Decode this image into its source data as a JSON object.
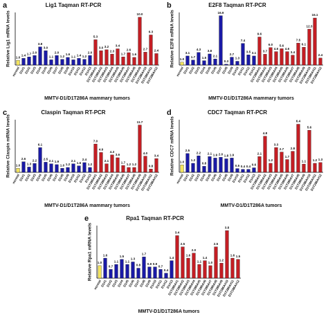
{
  "chart_data": [
    {
      "type": "bar",
      "panel": "a",
      "title": "Lig1 Taqman RT-PCR",
      "ylabel": "Relative Lig1 mRNA levels",
      "xlabel": "MMTV-D1/D1T286A mammary tumors",
      "ylim": [
        0,
        11
      ],
      "categories": [
        "normal",
        "D1#1",
        "D1#2",
        "D1#3",
        "D1#4",
        "D1#5",
        "D1#6",
        "D1#7",
        "D1#8",
        "D1#9",
        "D1#10",
        "D1#11",
        "D1#12",
        "D1#13",
        "D1T286A#1",
        "D1T286A#2",
        "D1T286A#3",
        "D1T286A#4",
        "D1T286A#5",
        "D1T286A#6",
        "D1T286A#7",
        "D1T286A#8",
        "D1T286A#9",
        "D1T286A#10",
        "D1T286A#11",
        "D1T286A#12"
      ],
      "values": [
        1.0,
        1.4,
        1.7,
        2.0,
        3.8,
        3.0,
        1.1,
        2.0,
        1.2,
        1.6,
        1.1,
        1.4,
        1.2,
        2.0,
        5.3,
        3.0,
        3.2,
        2.3,
        3.4,
        1.7,
        2.6,
        1.6,
        10.0,
        2.7,
        6.3,
        2.4
      ],
      "value_labels": [
        "1.0",
        "1.4",
        "1.7",
        "2.0",
        "3.8",
        "3.0",
        "1.1",
        "2.0",
        "1.2",
        "1.6",
        "1.1",
        "1.4",
        "1.2",
        "2.0",
        "5.3",
        "3.0",
        "3.2",
        "2.3",
        "3.4",
        "1.7",
        "2.6",
        "1.6",
        "10.0",
        "2.7",
        "6.3",
        "2.4"
      ],
      "bar_colors": [
        "#f2e35c",
        "#1a1aa6",
        "#1a1aa6",
        "#1a1aa6",
        "#1a1aa6",
        "#1a1aa6",
        "#1a1aa6",
        "#1a1aa6",
        "#1a1aa6",
        "#1a1aa6",
        "#1a1aa6",
        "#1a1aa6",
        "#1a1aa6",
        "#1a1aa6",
        "#c41e24",
        "#c41e24",
        "#c41e24",
        "#c41e24",
        "#c41e24",
        "#c41e24",
        "#c41e24",
        "#c41e24",
        "#c41e24",
        "#c41e24",
        "#c41e24",
        "#c41e24"
      ]
    },
    {
      "type": "bar",
      "panel": "b",
      "title": "E2F8 Taqman RT-PCR",
      "ylabel": "Relative E2F8 mRNA levels",
      "xlabel": "MMTV-D1/D1T286A mammary tumors",
      "ylim": [
        0,
        18
      ],
      "categories": [
        "normal",
        "D1#1",
        "D1#2",
        "D1#3",
        "D1#4",
        "D1#5",
        "D1#6",
        "D1#7",
        "D1#8",
        "D1#9",
        "D1#10",
        "D1#11",
        "D1#12",
        "D1#13",
        "D1T286A#1",
        "D1T286A#2",
        "D1T286A#3",
        "D1T286A#4",
        "D1T286A#5",
        "D1T286A#6",
        "D1T286A#7",
        "D1T286A#8",
        "D1T286A#9",
        "D1T286A#10",
        "D1T286A#11",
        "D1T286A#12"
      ],
      "values": [
        1.0,
        3.1,
        1.7,
        4.3,
        1.5,
        3.8,
        2.1,
        16.9,
        0.3,
        2.7,
        1.3,
        7.4,
        3.5,
        3.1,
        9.6,
        3.7,
        6.0,
        4.6,
        5.6,
        4.6,
        3.4,
        7.5,
        6.1,
        12.3,
        16.1,
        2.4
      ],
      "value_labels": [
        "1.0",
        "3.1",
        "1.7",
        "4.3",
        "1.5",
        "3.8",
        "2.1",
        "16.9",
        "0.3",
        "2.7",
        "1.3",
        "7.4",
        "3.5",
        "3.1",
        "9.6",
        "3.7",
        "6.0",
        "4.6",
        "5.6",
        "4.6",
        "3.4",
        "7.5",
        "6.1",
        "12.3",
        "16.1",
        "2.4"
      ],
      "bar_colors": [
        "#f2e35c",
        "#1a1aa6",
        "#1a1aa6",
        "#1a1aa6",
        "#1a1aa6",
        "#1a1aa6",
        "#1a1aa6",
        "#1a1aa6",
        "#1a1aa6",
        "#1a1aa6",
        "#1a1aa6",
        "#1a1aa6",
        "#1a1aa6",
        "#1a1aa6",
        "#c41e24",
        "#c41e24",
        "#c41e24",
        "#c41e24",
        "#c41e24",
        "#c41e24",
        "#c41e24",
        "#c41e24",
        "#c41e24",
        "#c41e24",
        "#c41e24",
        "#c41e24"
      ]
    },
    {
      "type": "bar",
      "panel": "c",
      "title": "Claspin Taqman RT-PCR",
      "ylabel": "Relative Claspin mRNA levels",
      "xlabel": "MMTV-D1/D1T286A mammary tumors",
      "ylim": [
        0,
        13
      ],
      "categories": [
        "normal",
        "D1#1",
        "D1#2",
        "D1#3",
        "D1#4",
        "D1#5",
        "D1#6",
        "D1#7",
        "D1#8",
        "D1#9",
        "D1#10",
        "D1#11",
        "D1#12",
        "D1#13",
        "D1T286A#1",
        "D1T286A#2",
        "D1T286A#3",
        "D1T286A#4",
        "D1T286A#5",
        "D1T286A#6",
        "D1T286A#7",
        "D1T286A#8",
        "D1T286A#9",
        "D1T286A#10",
        "D1T286A#11",
        "D1T286A#12"
      ],
      "values": [
        1.0,
        2.6,
        1.3,
        2.2,
        6.1,
        2.5,
        2.1,
        1.9,
        1.0,
        1.2,
        2.1,
        1.6,
        2.4,
        1.2,
        7.0,
        4.9,
        2.1,
        4.3,
        3.6,
        1.7,
        1.2,
        1.2,
        11.7,
        4.0,
        0.8,
        3.4
      ],
      "value_labels": [
        "1.0",
        "2.6",
        "1.3",
        "2.2",
        "6.1",
        "2.5",
        "2.1",
        "1.9",
        "1.0",
        "1.2",
        "2.1",
        "1.6",
        "2.4",
        "1.2",
        "7.0",
        "4.9",
        "2.1",
        "4.3",
        "3.6",
        "1.7",
        "1.2",
        "1.2",
        "11.7",
        "4.0",
        "0.8",
        "3.4"
      ],
      "bar_colors": [
        "#f2e35c",
        "#1a1aa6",
        "#1a1aa6",
        "#1a1aa6",
        "#1a1aa6",
        "#1a1aa6",
        "#1a1aa6",
        "#1a1aa6",
        "#1a1aa6",
        "#1a1aa6",
        "#1a1aa6",
        "#1a1aa6",
        "#1a1aa6",
        "#1a1aa6",
        "#c41e24",
        "#c41e24",
        "#c41e24",
        "#c41e24",
        "#c41e24",
        "#c41e24",
        "#c41e24",
        "#c41e24",
        "#c41e24",
        "#c41e24",
        "#c41e24",
        "#c41e24"
      ]
    },
    {
      "type": "bar",
      "panel": "d",
      "title": "CDC7 Taqman RT-PCR",
      "ylabel": "Relative CDC7 mRNA levels",
      "xlabel": "MMTV-D1/D1T286A tumors",
      "ylim": [
        0,
        7
      ],
      "categories": [
        "normal",
        "D1#1",
        "D1#2",
        "D1#3",
        "D1#4",
        "D1#5",
        "D1#6",
        "D1#7",
        "D1#8",
        "D1#9",
        "D1#10",
        "D1#11",
        "D1#12",
        "D1#13",
        "D1T286A#1",
        "D1T286A#2",
        "D1T286A#3",
        "D1T286A#4",
        "D1T286A#5",
        "D1T286A#6",
        "D1T286A#7",
        "D1T286A#8",
        "D1T286A#9",
        "D1T286A#10",
        "D1T286A#11",
        "D1T286A#12"
      ],
      "values": [
        1.0,
        2.5,
        1.2,
        2.2,
        0.8,
        2.1,
        1.9,
        2.0,
        1.8,
        1.9,
        0.5,
        0.4,
        0.4,
        0.6,
        2.1,
        4.8,
        1.2,
        3.3,
        2.7,
        1.7,
        2.8,
        6.4,
        1.1,
        5.6,
        1.2,
        1.3
      ],
      "value_labels": [
        "1.0",
        "2.5",
        "1.2",
        "2.2",
        "0.8",
        "2.1",
        "1.9",
        "2.0",
        "1.8",
        "1.9",
        "0.5",
        "0.4",
        "0.4",
        "0.6",
        "2.1",
        "4.8",
        "1.2",
        "3.3",
        "2.7",
        "1.7",
        "2.8",
        "6.4",
        "1.1",
        "5.6",
        "1.2",
        "1.3"
      ],
      "bar_colors": [
        "#f2e35c",
        "#1a1aa6",
        "#1a1aa6",
        "#1a1aa6",
        "#1a1aa6",
        "#1a1aa6",
        "#1a1aa6",
        "#1a1aa6",
        "#1a1aa6",
        "#1a1aa6",
        "#1a1aa6",
        "#1a1aa6",
        "#1a1aa6",
        "#1a1aa6",
        "#c41e24",
        "#c41e24",
        "#c41e24",
        "#c41e24",
        "#c41e24",
        "#c41e24",
        "#c41e24",
        "#c41e24",
        "#c41e24",
        "#c41e24",
        "#c41e24",
        "#c41e24"
      ]
    },
    {
      "type": "bar",
      "panel": "e",
      "title": "Rpa1 Taqman RT-PCR",
      "ylabel": "Relative Rpa1 mRNA levels",
      "xlabel": "MMTV-D1/D1T286A tumors",
      "ylim": [
        0,
        4.2
      ],
      "categories": [
        "normal",
        "D1#1",
        "D1#2",
        "D1#3",
        "D1#4",
        "D1#5",
        "D1#6",
        "D1#7",
        "D1#8",
        "D1#9",
        "D1#10",
        "D1#11",
        "D1#12",
        "D1#13",
        "D1T286A#1",
        "D1T286A#2",
        "D1T286A#3",
        "D1T286A#4",
        "D1T286A#5",
        "D1T286A#6",
        "D1T286A#7",
        "D1T286A#8",
        "D1T286A#9",
        "D1T286A#10",
        "D1T286A#11",
        "D1T286A#12"
      ],
      "values": [
        1.0,
        1.6,
        0.7,
        1.1,
        1.5,
        1.1,
        1.3,
        0.8,
        1.7,
        0.9,
        0.9,
        0.7,
        0.4,
        1.4,
        3.4,
        2.5,
        1.6,
        2.0,
        1.1,
        1.4,
        1.0,
        2.5,
        1.2,
        3.8,
        1.6,
        1.5
      ],
      "value_labels": [
        "1.0",
        "1.6",
        "0.7",
        "1.1",
        "1.5",
        "1.1",
        "1.3",
        "0.8",
        "1.7",
        "0.9",
        "0.9",
        "0.7",
        "0.4",
        "1.4",
        "3.4",
        "2.5",
        "1.6",
        "2.0",
        "1.1",
        "1.4",
        "1.0",
        "2.5",
        "1.2",
        "3.8",
        "1.6",
        "1.5"
      ],
      "bar_colors": [
        "#f2e35c",
        "#1a1aa6",
        "#1a1aa6",
        "#1a1aa6",
        "#1a1aa6",
        "#1a1aa6",
        "#1a1aa6",
        "#1a1aa6",
        "#1a1aa6",
        "#1a1aa6",
        "#1a1aa6",
        "#1a1aa6",
        "#1a1aa6",
        "#1a1aa6",
        "#c41e24",
        "#c41e24",
        "#c41e24",
        "#c41e24",
        "#c41e24",
        "#c41e24",
        "#c41e24",
        "#c41e24",
        "#c41e24",
        "#c41e24",
        "#c41e24",
        "#c41e24"
      ]
    }
  ]
}
